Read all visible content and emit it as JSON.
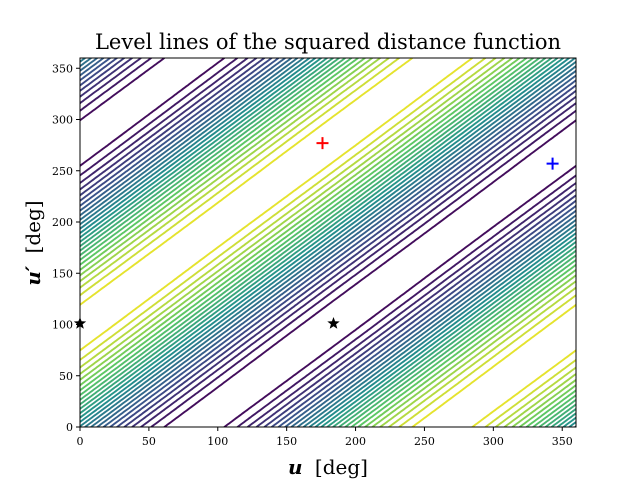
{
  "chart_data": {
    "type": "contour",
    "title": "Level lines of the squared distance function",
    "xlabel_var": "u",
    "xlabel_unit": "[deg]",
    "ylabel_var": "u′",
    "ylabel_unit": "[deg]",
    "xlim": [
      0,
      360
    ],
    "ylim": [
      0,
      360
    ],
    "xticks": [
      0,
      50,
      100,
      150,
      200,
      250,
      300,
      350
    ],
    "yticks": [
      0,
      50,
      100,
      150,
      200,
      250,
      300,
      350
    ],
    "grid": false,
    "colormap": [
      "#440154",
      "#3b528b",
      "#21918c",
      "#5ec962",
      "#fde725"
    ],
    "level_count": 26,
    "markers": [
      {
        "name": "maximum",
        "symbol": "plus",
        "x": 176,
        "y": 277,
        "color": "#ff0000"
      },
      {
        "name": "minimum",
        "symbol": "plus",
        "x": 343,
        "y": 257,
        "color": "#0000ff"
      },
      {
        "name": "saddle",
        "symbol": "star",
        "x": 184,
        "y": 101,
        "color": "#000000"
      },
      {
        "name": "saddle",
        "symbol": "star",
        "x": 0,
        "y": 101,
        "color": "#000000"
      }
    ]
  }
}
